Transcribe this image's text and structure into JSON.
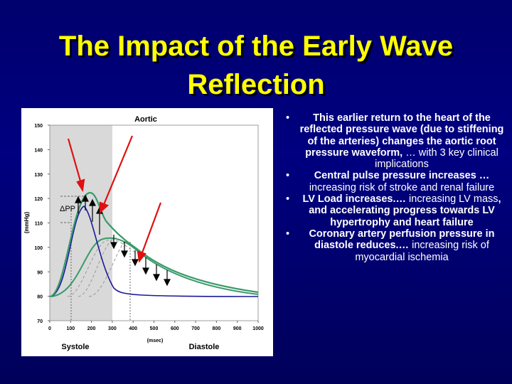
{
  "slide": {
    "title": "The Impact of the Early Wave Reflection",
    "figure": {
      "label": "Aortic",
      "y_axis_label": "(mmHg)",
      "x_axis_label": "(msec)",
      "yticks": [
        150,
        140,
        130,
        120,
        110,
        100,
        90,
        80,
        70
      ],
      "xticks": [
        0,
        100,
        200,
        300,
        400,
        500,
        600,
        700,
        800,
        900,
        1000
      ],
      "pp_label": "ΔPP",
      "phase_left": "Systole",
      "phase_right": "Diastole"
    },
    "bullets": [
      {
        "runs": [
          {
            "text": "This earlier return to the heart of the reflected pressure wave (due to stiffening of the arteries) changes the aortic root pressure waveform,",
            "bold": true
          },
          {
            "text": " … with 3 key clinical implications",
            "bold": false
          }
        ]
      },
      {
        "runs": [
          {
            "text": "Central pulse pressure increases …",
            "bold": true
          },
          {
            "text": " increasing risk of stroke and renal failure",
            "bold": false
          }
        ]
      },
      {
        "runs": [
          {
            "text": "LV Load increases.…",
            "bold": true
          },
          {
            "text": " increasing LV mass",
            "bold": false
          },
          {
            "text": ", and accelerating progress towards LV hypertrophy and heart failure",
            "bold": true
          }
        ]
      },
      {
        "runs": [
          {
            "text": "Coronary artery perfusion pressure in diastole reduces.…",
            "bold": true
          },
          {
            "text": " increasing risk of myocardial ischemia",
            "bold": false
          }
        ]
      }
    ]
  }
}
